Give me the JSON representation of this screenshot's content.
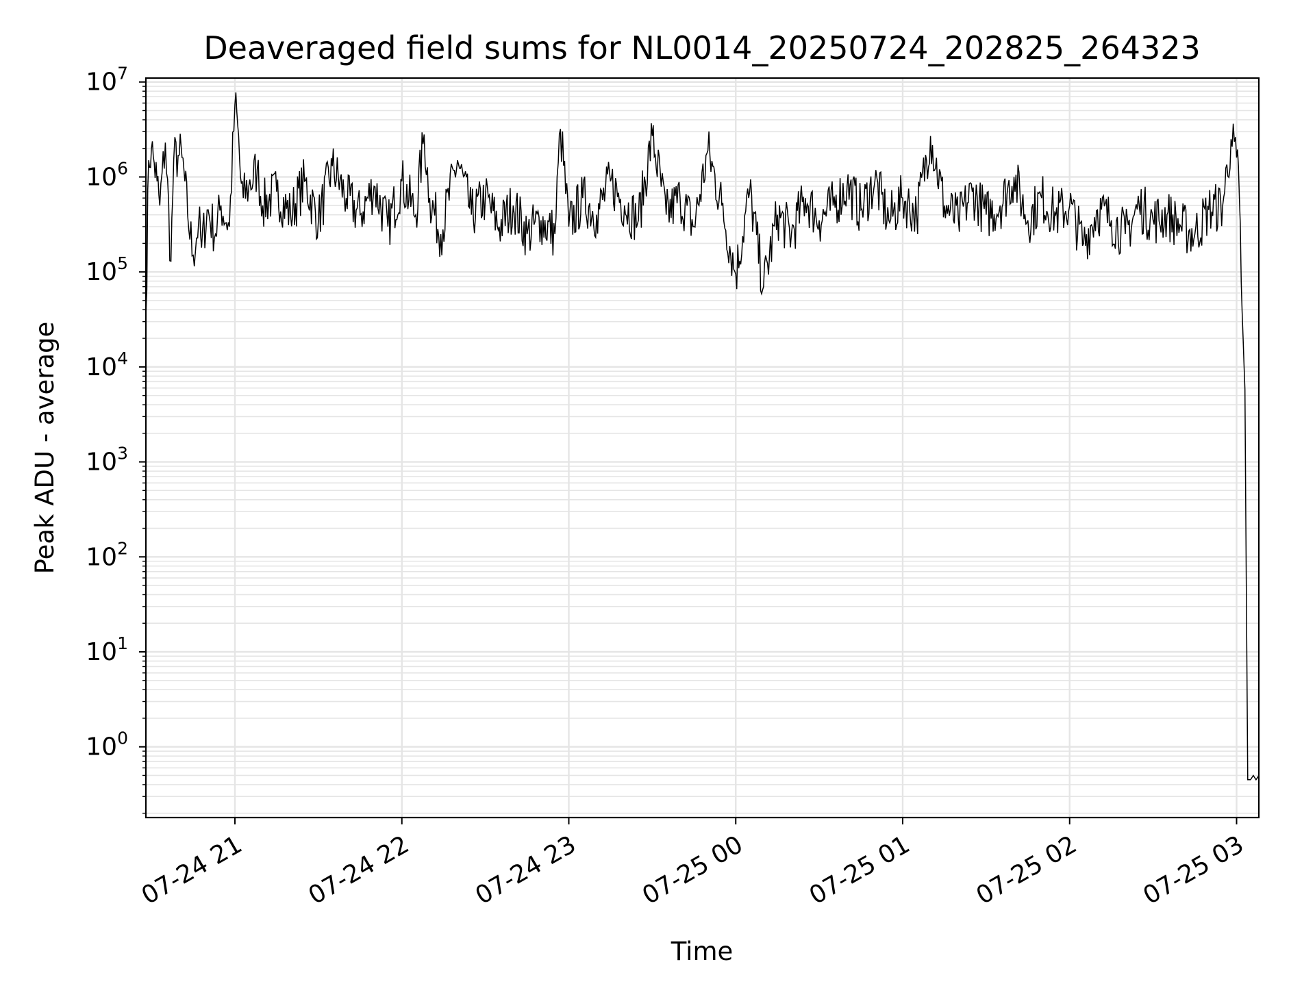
{
  "chart_data": {
    "type": "line",
    "title": "Deaveraged field sums for NL0014_20250724_202825_264323",
    "xlabel": "Time",
    "ylabel": "Peak ADU - average",
    "x_ticks": [
      "07-24 21",
      "07-24 22",
      "07-24 23",
      "07-25 00",
      "07-25 01",
      "07-25 02",
      "07-25 03"
    ],
    "y_ticks": [
      {
        "base": "10",
        "exp": "0"
      },
      {
        "base": "10",
        "exp": "1"
      },
      {
        "base": "10",
        "exp": "2"
      },
      {
        "base": "10",
        "exp": "3"
      },
      {
        "base": "10",
        "exp": "4"
      },
      {
        "base": "10",
        "exp": "5"
      },
      {
        "base": "10",
        "exp": "6"
      },
      {
        "base": "10",
        "exp": "7"
      }
    ],
    "xlim": [
      "2025-07-24 20:28",
      "2025-07-25 03:08"
    ],
    "ylim": [
      0.18,
      11000000
    ],
    "y_scale": "log",
    "grid": true,
    "line_color": "#000000",
    "grid_color": "#e5e5e5",
    "series": [
      {
        "x": [
          "2025-07-24 20:28",
          "2025-07-24 20:29",
          "2025-07-24 20:30",
          "2025-07-24 20:31",
          "2025-07-24 20:32",
          "2025-07-24 20:33",
          "2025-07-24 20:35",
          "2025-07-24 20:37",
          "2025-07-24 20:38",
          "2025-07-24 20:40",
          "2025-07-24 20:41",
          "2025-07-24 20:42",
          "2025-07-24 20:43",
          "2025-07-24 20:45",
          "2025-07-24 20:47",
          "2025-07-24 20:48",
          "2025-07-24 20:50",
          "2025-07-24 20:53",
          "2025-07-24 20:55",
          "2025-07-24 20:58",
          "2025-07-24 21:00",
          "2025-07-24 21:01",
          "2025-07-24 21:02",
          "2025-07-24 21:03",
          "2025-07-24 21:05",
          "2025-07-24 21:08",
          "2025-07-24 21:10",
          "2025-07-24 21:15",
          "2025-07-24 21:20",
          "2025-07-24 21:25",
          "2025-07-24 21:30",
          "2025-07-24 21:35",
          "2025-07-24 21:40",
          "2025-07-24 21:45",
          "2025-07-24 21:50",
          "2025-07-24 21:55",
          "2025-07-24 22:00",
          "2025-07-24 22:05",
          "2025-07-24 22:08",
          "2025-07-24 22:10",
          "2025-07-24 22:14",
          "2025-07-24 22:20",
          "2025-07-24 22:25",
          "2025-07-24 22:30",
          "2025-07-24 22:35",
          "2025-07-24 22:40",
          "2025-07-24 22:45",
          "2025-07-24 22:50",
          "2025-07-24 22:55",
          "2025-07-24 22:57",
          "2025-07-24 23:00",
          "2025-07-24 23:05",
          "2025-07-24 23:10",
          "2025-07-24 23:15",
          "2025-07-24 23:20",
          "2025-07-24 23:25",
          "2025-07-24 23:30",
          "2025-07-24 23:35",
          "2025-07-24 23:40",
          "2025-07-24 23:45",
          "2025-07-24 23:50",
          "2025-07-24 23:55",
          "2025-07-25 00:00",
          "2025-07-25 00:05",
          "2025-07-25 00:10",
          "2025-07-25 00:15",
          "2025-07-25 00:20",
          "2025-07-25 00:25",
          "2025-07-25 00:30",
          "2025-07-25 00:35",
          "2025-07-25 00:40",
          "2025-07-25 00:45",
          "2025-07-25 00:50",
          "2025-07-25 00:55",
          "2025-07-25 01:00",
          "2025-07-25 01:05",
          "2025-07-25 01:10",
          "2025-07-25 01:15",
          "2025-07-25 01:20",
          "2025-07-25 01:25",
          "2025-07-25 01:30",
          "2025-07-25 01:35",
          "2025-07-25 01:40",
          "2025-07-25 01:45",
          "2025-07-25 01:50",
          "2025-07-25 01:55",
          "2025-07-25 02:00",
          "2025-07-25 02:05",
          "2025-07-25 02:10",
          "2025-07-25 02:15",
          "2025-07-25 02:20",
          "2025-07-25 02:25",
          "2025-07-25 02:30",
          "2025-07-25 02:35",
          "2025-07-25 02:40",
          "2025-07-25 02:45",
          "2025-07-25 02:50",
          "2025-07-25 02:55",
          "2025-07-25 02:58",
          "2025-07-25 03:00",
          "2025-07-25 03:01",
          "2025-07-25 03:02",
          "2025-07-25 03:03",
          "2025-07-25 03:04",
          "2025-07-25 03:05",
          "2025-07-25 03:06",
          "2025-07-25 03:07",
          "2025-07-25 03:08"
        ],
        "y": [
          35000,
          1500000,
          2000000,
          1400000,
          900000,
          500000,
          2300000,
          130000,
          1500000,
          1700000,
          1600000,
          900000,
          400000,
          150000,
          350000,
          180000,
          450000,
          250000,
          500000,
          300000,
          5800000,
          3500000,
          1000000,
          600000,
          800000,
          1200000,
          500000,
          700000,
          400000,
          900000,
          350000,
          1300000,
          600000,
          400000,
          800000,
          300000,
          900000,
          400000,
          2800000,
          600000,
          250000,
          1500000,
          400000,
          600000,
          300000,
          500000,
          250000,
          350000,
          250000,
          3200000,
          300000,
          600000,
          400000,
          900000,
          500000,
          350000,
          2700000,
          400000,
          600000,
          300000,
          1900000,
          500000,
          95000,
          700000,
          70000,
          400000,
          250000,
          600000,
          350000,
          500000,
          800000,
          450000,
          900000,
          350000,
          600000,
          400000,
          2700000,
          500000,
          350000,
          700000,
          400000,
          500000,
          1000000,
          350000,
          600000,
          400000,
          500000,
          200000,
          450000,
          350000,
          250000,
          500000,
          350000,
          400000,
          300000,
          250000,
          450000,
          500000,
          2500000,
          1600000,
          600000,
          38000,
          5800,
          0.45,
          0.45,
          0.5,
          0.45,
          0.5
        ]
      }
    ]
  }
}
